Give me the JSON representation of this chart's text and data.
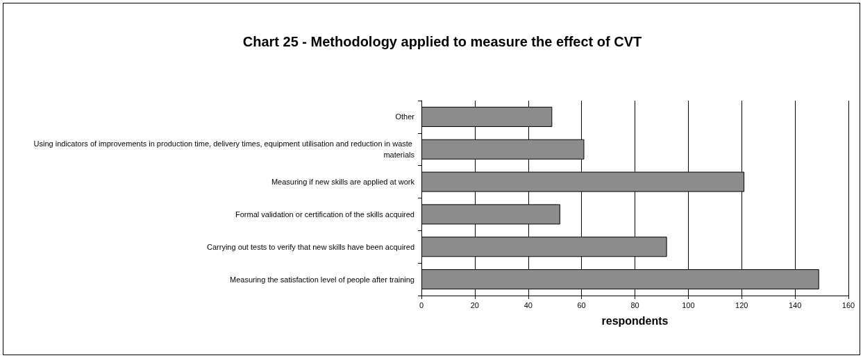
{
  "chart_data": {
    "type": "bar",
    "orientation": "horizontal",
    "title": "Chart 25 - Methodology applied to measure the effect of CVT",
    "xlabel": "respondents",
    "categories": [
      "Other",
      "Using indicators of improvements in production time, delivery times, equipment utilisation and reduction in waste materials",
      "Measuring if new skills are applied at work",
      "Formal validation or certification of the skills acquired",
      "Carrying out tests to verify that new skills have been acquired",
      "Measuring the satisfaction level of people after training"
    ],
    "values": [
      49,
      61,
      121,
      52,
      92,
      149
    ],
    "color": "#8c8c8c",
    "xlim": [
      0,
      160
    ],
    "xticks": [
      0,
      20,
      40,
      60,
      80,
      100,
      120,
      140,
      160
    ],
    "grid": "x"
  }
}
